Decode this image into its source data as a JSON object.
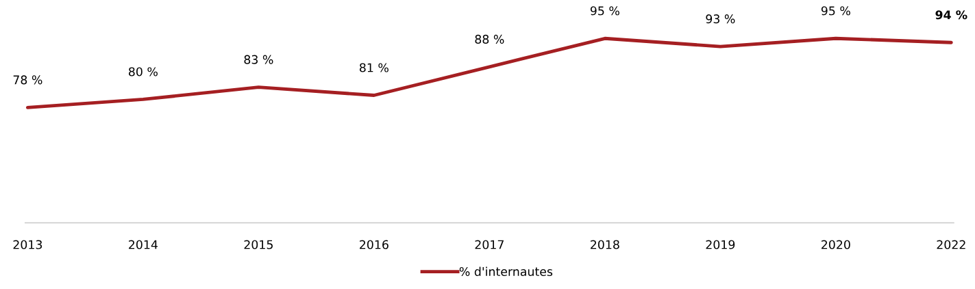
{
  "chart_data": {
    "type": "line",
    "categories": [
      "2013",
      "2014",
      "2015",
      "2016",
      "2017",
      "2018",
      "2019",
      "2020",
      "2022"
    ],
    "series": [
      {
        "name": "% d'internautes",
        "color": "#a51f22",
        "values": [
          78,
          80,
          83,
          81,
          88,
          95,
          93,
          95,
          94
        ],
        "value_labels": [
          "78 %",
          "80 %",
          "83 %",
          "81 %",
          "88 %",
          "95 %",
          "93 %",
          "95 %",
          "94 %"
        ]
      }
    ],
    "grid": false,
    "legend": "bottom",
    "marker": "none",
    "line_style": "solid",
    "tick_labels": "x"
  }
}
